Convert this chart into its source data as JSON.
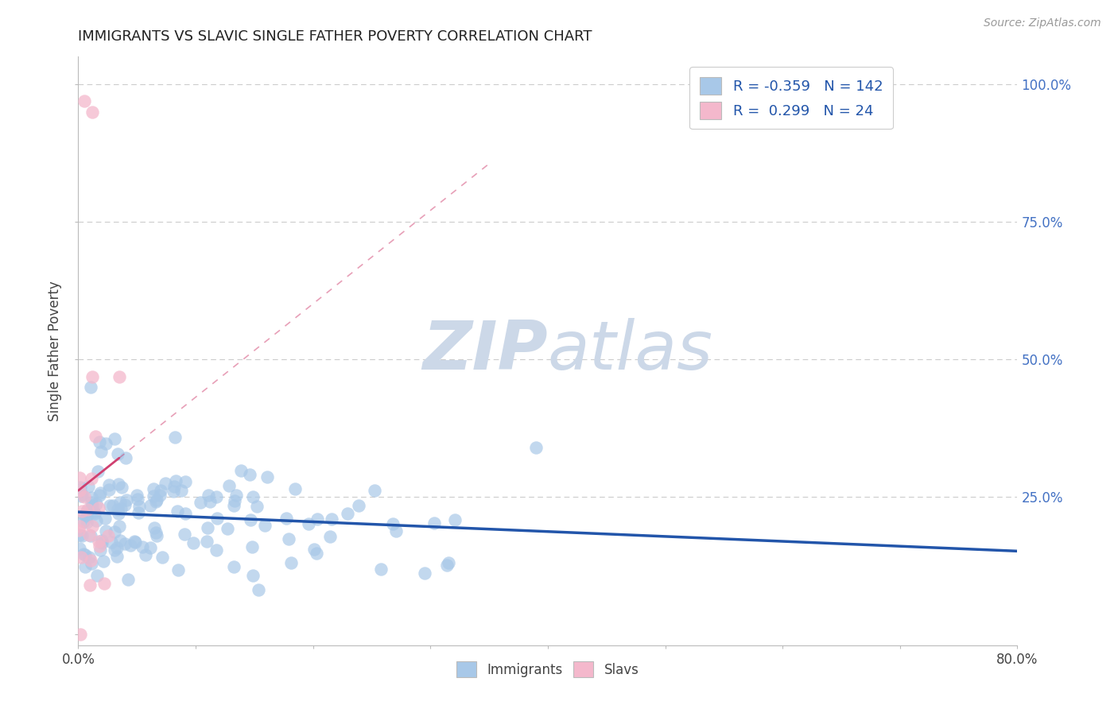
{
  "title": "IMMIGRANTS VS SLAVIC SINGLE FATHER POVERTY CORRELATION CHART",
  "source_text": "Source: ZipAtlas.com",
  "ylabel": "Single Father Poverty",
  "right_yticks": [
    0.25,
    0.5,
    0.75,
    1.0
  ],
  "right_yticklabels": [
    "25.0%",
    "50.0%",
    "75.0%",
    "100.0%"
  ],
  "blue_R": -0.359,
  "blue_N": 142,
  "pink_R": 0.299,
  "pink_N": 24,
  "blue_color": "#a8c8e8",
  "blue_line_color": "#2255aa",
  "pink_color": "#f4b8cc",
  "pink_line_color": "#d04070",
  "legend_label_immigrants": "Immigrants",
  "legend_label_slavs": "Slavs",
  "watermark_zip": "ZIP",
  "watermark_atlas": "atlas",
  "watermark_color": "#ccd8e8",
  "title_fontsize": 13,
  "seed": 42,
  "xlim_max": 0.8,
  "ylim_min": -0.02,
  "ylim_max": 1.05,
  "grid_dashes": [
    6,
    4
  ],
  "grid_color": "#cccccc"
}
